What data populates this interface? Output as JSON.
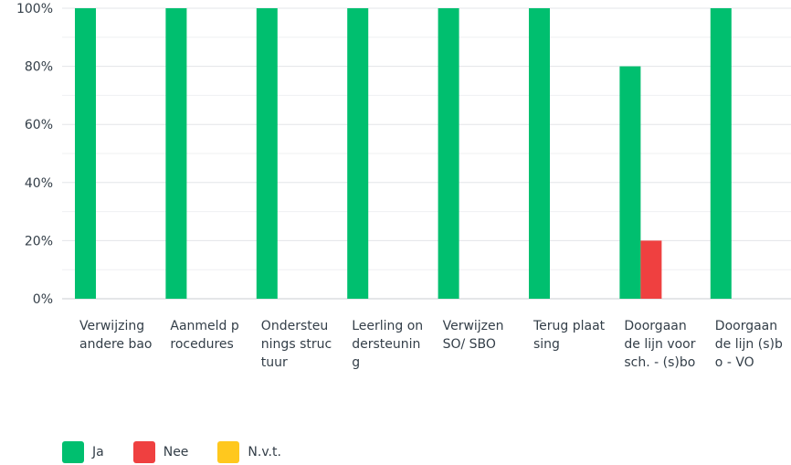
{
  "chart_data": {
    "type": "bar",
    "categories": [
      "Verwijzing andere bao",
      "Aanmeld procedures",
      "Ondersteunings structuur",
      "Leerling ondersteuning",
      "Verwijzen SO/ SBO",
      "Terug plaatsing",
      "Doorgaan de lijn voorsch. - (s)bo",
      "Doorgaan de lijn (s)bo - VO"
    ],
    "series": [
      {
        "name": "Ja",
        "color": "#00bf6f",
        "values": [
          100,
          100,
          100,
          100,
          100,
          100,
          80,
          100
        ]
      },
      {
        "name": "Nee",
        "color": "#f05b24",
        "values": [
          0,
          0,
          0,
          0,
          0,
          0,
          20,
          0
        ]
      },
      {
        "name": "N.v.t.",
        "color": "#f9be00",
        "values": [
          0,
          0,
          0,
          0,
          0,
          0,
          0,
          0
        ]
      }
    ],
    "ylim": [
      0,
      100
    ],
    "yticks": [
      "0%",
      "20%",
      "40%",
      "60%",
      "80%",
      "100%"
    ],
    "grid": true,
    "legend_position": "bottom-left"
  }
}
